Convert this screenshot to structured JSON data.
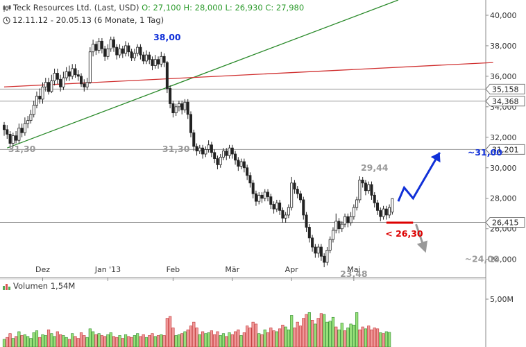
{
  "header": {
    "title": "Teck Resources Ltd. (Last, USD)",
    "ohlc": "O: 27,100  H: 28,000  L: 26,930  C: 27,980",
    "range": "12.11.12 - 20.05.13 (6 Monate, 1 Tag)"
  },
  "volume_header": {
    "label": "Volumen",
    "value": "1,54M"
  },
  "colors": {
    "up": "#22aa22",
    "down": "#d62020",
    "vol_up": "#99e07a",
    "vol_down": "#f0999a",
    "trend_green": "#2a8a2a",
    "trend_red": "#d03030",
    "forecast_up": "#1030d8",
    "forecast_down": "#999999",
    "support": "#dd0000"
  },
  "chart_data": {
    "type": "candlestick",
    "title": "Teck Resources Ltd. (Last, USD)",
    "period": "12.11.12 - 20.05.13",
    "y_axis": {
      "range": [
        22.8,
        41.0
      ],
      "ticks": [
        "24,000",
        "26,000",
        "28,000",
        "30,000",
        "32,000",
        "34,000",
        "36,000",
        "38,000",
        "40,000"
      ],
      "tick_values": [
        24,
        26,
        28,
        30,
        32,
        34,
        36,
        38,
        40
      ]
    },
    "x_axis": {
      "labels": [
        "Dez",
        "Jan '13",
        "Feb",
        "Mär",
        "Apr",
        "Mai"
      ],
      "label_index": [
        13,
        35,
        57,
        77,
        97,
        118
      ]
    },
    "horizontal_levels": [
      {
        "value": 35.158,
        "label": "35,158"
      },
      {
        "value": 34.368,
        "label": "34,368"
      },
      {
        "value": 31.201,
        "label": "31,201"
      },
      {
        "value": 26.415,
        "label": "26,415"
      }
    ],
    "annotations": [
      {
        "text": "38,00",
        "x_index": 55,
        "value": 38.0,
        "color": "#1030d8"
      },
      {
        "text": "31,30",
        "x_index": 6,
        "value": 31.3,
        "color": "#999999"
      },
      {
        "text": "31,30",
        "x_index": 58,
        "value": 31.3,
        "color": "#999999"
      },
      {
        "text": "29,44",
        "x_index": 125,
        "value": 29.44,
        "color": "#999999"
      },
      {
        "text": "23,48",
        "x_index": 118,
        "value": 23.48,
        "color": "#999999"
      },
      {
        "text": "< 26,30",
        "x_index": 135,
        "value": 26.3,
        "color": "#dd0000"
      },
      {
        "text": "~31,00",
        "x_index": 155,
        "value": 31.0,
        "color": "#1030d8"
      },
      {
        "text": "~24,00",
        "x_index": 154,
        "value": 24.0,
        "color": "#999999"
      }
    ],
    "trendlines": [
      {
        "name": "green",
        "from": [
          1,
          31.3
        ],
        "to": [
          133,
          41.0
        ]
      },
      {
        "name": "red",
        "from": [
          0,
          35.3
        ],
        "to": [
          165,
          36.9
        ]
      }
    ],
    "forecast_up": [
      [
        133,
        27.8
      ],
      [
        135,
        28.7
      ],
      [
        138,
        28.0
      ],
      [
        147,
        31.0
      ]
    ],
    "forecast_down": [
      [
        139,
        26.3
      ],
      [
        142,
        24.6
      ]
    ],
    "support_mark": {
      "x_from": 129,
      "x_to": 138,
      "value": 26.4
    },
    "candles": [
      [
        32.8,
        32.5,
        33.0,
        32.1
      ],
      [
        32.5,
        32.2,
        32.8,
        31.9
      ],
      [
        32.2,
        31.6,
        32.4,
        31.3
      ],
      [
        31.6,
        32.1,
        32.3,
        31.4
      ],
      [
        32.1,
        31.8,
        32.4,
        31.6
      ],
      [
        31.8,
        32.6,
        32.9,
        31.6
      ],
      [
        32.6,
        32.3,
        32.9,
        32.0
      ],
      [
        32.3,
        32.9,
        33.3,
        32.1
      ],
      [
        32.9,
        33.1,
        33.4,
        32.6
      ],
      [
        33.1,
        33.5,
        33.8,
        32.9
      ],
      [
        33.5,
        34.1,
        34.4,
        33.3
      ],
      [
        34.1,
        34.7,
        35.0,
        33.9
      ],
      [
        34.7,
        34.5,
        35.2,
        34.2
      ],
      [
        34.5,
        35.3,
        35.6,
        34.2
      ],
      [
        35.3,
        35.6,
        35.9,
        35.0
      ],
      [
        35.6,
        35.0,
        35.9,
        34.8
      ],
      [
        35.0,
        35.7,
        36.1,
        34.9
      ],
      [
        35.7,
        36.2,
        36.5,
        35.4
      ],
      [
        36.2,
        35.8,
        36.5,
        35.5
      ],
      [
        35.8,
        35.3,
        36.1,
        35.0
      ],
      [
        35.3,
        35.9,
        36.3,
        35.1
      ],
      [
        35.9,
        36.3,
        36.6,
        35.7
      ],
      [
        36.3,
        36.0,
        36.7,
        35.7
      ],
      [
        36.0,
        36.5,
        36.8,
        35.8
      ],
      [
        36.5,
        36.1,
        36.8,
        35.9
      ],
      [
        36.1,
        36.0,
        36.4,
        35.7
      ],
      [
        36.0,
        35.5,
        36.2,
        35.3
      ],
      [
        35.5,
        35.3,
        35.8,
        35.0
      ],
      [
        35.3,
        35.6,
        35.9,
        35.1
      ],
      [
        35.6,
        37.6,
        37.9,
        35.5
      ],
      [
        37.6,
        38.1,
        38.4,
        37.3
      ],
      [
        38.1,
        37.7,
        38.3,
        37.4
      ],
      [
        37.7,
        38.3,
        38.5,
        37.5
      ],
      [
        38.3,
        37.8,
        38.5,
        37.5
      ],
      [
        37.8,
        37.3,
        38.0,
        37.0
      ],
      [
        37.3,
        37.8,
        38.1,
        37.1
      ],
      [
        37.8,
        38.4,
        38.6,
        37.6
      ],
      [
        38.4,
        37.9,
        38.6,
        37.6
      ],
      [
        37.9,
        37.4,
        38.1,
        37.1
      ],
      [
        37.4,
        37.8,
        38.1,
        37.2
      ],
      [
        37.8,
        37.5,
        38.0,
        37.2
      ],
      [
        37.5,
        38.0,
        38.3,
        37.3
      ],
      [
        38.0,
        37.6,
        38.2,
        37.3
      ],
      [
        37.6,
        37.2,
        37.8,
        37.0
      ],
      [
        37.2,
        37.5,
        37.8,
        37.0
      ],
      [
        37.5,
        37.9,
        38.1,
        37.3
      ],
      [
        37.9,
        37.4,
        38.1,
        37.1
      ],
      [
        37.4,
        37.0,
        37.6,
        36.8
      ],
      [
        37.0,
        37.4,
        37.7,
        36.8
      ],
      [
        37.4,
        37.1,
        37.6,
        36.8
      ],
      [
        37.1,
        36.7,
        37.3,
        36.4
      ],
      [
        36.7,
        37.1,
        37.4,
        36.5
      ],
      [
        37.1,
        36.8,
        37.3,
        36.5
      ],
      [
        36.8,
        37.3,
        37.6,
        36.6
      ],
      [
        37.3,
        36.9,
        37.5,
        36.6
      ],
      [
        36.9,
        35.2,
        37.0,
        34.9
      ],
      [
        35.2,
        34.2,
        35.4,
        33.9
      ],
      [
        34.2,
        33.6,
        34.4,
        33.3
      ],
      [
        33.6,
        34.0,
        34.2,
        33.4
      ],
      [
        34.0,
        34.2,
        34.4,
        33.7
      ],
      [
        34.2,
        33.8,
        34.4,
        33.5
      ],
      [
        33.8,
        34.3,
        34.5,
        33.6
      ],
      [
        34.3,
        33.5,
        34.5,
        33.2
      ],
      [
        33.5,
        32.3,
        33.7,
        32.0
      ],
      [
        32.3,
        31.4,
        32.5,
        31.1
      ],
      [
        31.4,
        31.1,
        31.6,
        30.8
      ],
      [
        31.1,
        31.3,
        31.5,
        30.9
      ],
      [
        31.3,
        30.9,
        31.5,
        30.6
      ],
      [
        30.9,
        31.2,
        31.4,
        30.7
      ],
      [
        31.2,
        31.5,
        31.8,
        31.0
      ],
      [
        31.5,
        31.0,
        31.7,
        30.7
      ],
      [
        31.0,
        30.6,
        31.2,
        30.3
      ],
      [
        30.6,
        30.2,
        30.8,
        29.9
      ],
      [
        30.2,
        30.7,
        30.9,
        30.0
      ],
      [
        30.7,
        31.1,
        31.3,
        30.5
      ],
      [
        31.1,
        30.8,
        31.3,
        30.5
      ],
      [
        30.8,
        31.3,
        31.5,
        30.6
      ],
      [
        31.3,
        30.9,
        31.5,
        30.6
      ],
      [
        30.9,
        30.5,
        31.1,
        30.2
      ],
      [
        30.5,
        30.1,
        30.7,
        29.8
      ],
      [
        30.1,
        30.4,
        30.6,
        29.9
      ],
      [
        30.4,
        30.0,
        30.6,
        29.7
      ],
      [
        30.0,
        29.5,
        30.2,
        29.2
      ],
      [
        29.5,
        29.0,
        29.7,
        28.7
      ],
      [
        29.0,
        28.3,
        29.2,
        28.0
      ],
      [
        28.3,
        27.8,
        28.5,
        27.5
      ],
      [
        27.8,
        28.2,
        28.4,
        27.6
      ],
      [
        28.2,
        28.0,
        28.4,
        27.7
      ],
      [
        28.0,
        28.4,
        28.6,
        27.8
      ],
      [
        28.4,
        28.1,
        28.6,
        27.8
      ],
      [
        28.1,
        27.6,
        28.3,
        27.3
      ],
      [
        27.6,
        27.3,
        27.8,
        27.0
      ],
      [
        27.3,
        27.7,
        27.9,
        27.1
      ],
      [
        27.7,
        27.2,
        27.9,
        26.9
      ],
      [
        27.2,
        26.7,
        27.4,
        26.4
      ],
      [
        26.7,
        26.9,
        27.1,
        26.4
      ],
      [
        26.9,
        27.4,
        27.6,
        26.7
      ],
      [
        27.4,
        29.0,
        29.4,
        27.2
      ],
      [
        29.0,
        28.6,
        29.2,
        28.3
      ],
      [
        28.6,
        28.3,
        28.8,
        28.0
      ],
      [
        28.3,
        27.9,
        28.5,
        27.7
      ],
      [
        27.9,
        26.9,
        28.1,
        26.6
      ],
      [
        26.9,
        26.1,
        27.1,
        25.8
      ],
      [
        26.1,
        25.4,
        26.3,
        25.1
      ],
      [
        25.4,
        24.8,
        25.6,
        24.5
      ],
      [
        24.8,
        24.4,
        25.0,
        24.1
      ],
      [
        24.4,
        24.8,
        25.0,
        24.1
      ],
      [
        24.8,
        24.2,
        25.0,
        23.9
      ],
      [
        24.2,
        23.8,
        24.4,
        23.48
      ],
      [
        23.8,
        24.6,
        24.8,
        23.6
      ],
      [
        24.6,
        25.3,
        25.5,
        24.4
      ],
      [
        25.3,
        25.9,
        26.1,
        25.1
      ],
      [
        25.9,
        26.5,
        27.0,
        25.7
      ],
      [
        26.5,
        26.0,
        26.7,
        25.7
      ],
      [
        26.0,
        26.3,
        26.5,
        25.8
      ],
      [
        26.3,
        26.8,
        27.0,
        26.1
      ],
      [
        26.8,
        26.4,
        27.0,
        26.1
      ],
      [
        26.4,
        26.8,
        27.1,
        26.2
      ],
      [
        26.8,
        27.4,
        27.6,
        26.6
      ],
      [
        27.4,
        27.9,
        28.1,
        27.2
      ],
      [
        27.9,
        29.2,
        29.44,
        27.7
      ],
      [
        29.2,
        29.0,
        29.4,
        28.7
      ],
      [
        29.0,
        28.5,
        29.2,
        28.2
      ],
      [
        28.5,
        28.9,
        29.1,
        28.3
      ],
      [
        28.9,
        28.2,
        29.1,
        27.9
      ],
      [
        28.2,
        27.7,
        28.4,
        27.4
      ],
      [
        27.7,
        27.2,
        27.9,
        26.9
      ],
      [
        27.2,
        26.8,
        27.4,
        26.5
      ],
      [
        26.8,
        27.3,
        27.5,
        26.6
      ],
      [
        27.3,
        26.9,
        27.5,
        26.6
      ],
      [
        26.9,
        27.4,
        27.6,
        26.7
      ],
      [
        27.1,
        27.98,
        28.0,
        26.93
      ]
    ],
    "volumes": [
      [
        0.8,
        1
      ],
      [
        1.0,
        0
      ],
      [
        1.4,
        0
      ],
      [
        0.9,
        1
      ],
      [
        1.1,
        0
      ],
      [
        1.6,
        1
      ],
      [
        1.2,
        0
      ],
      [
        1.3,
        1
      ],
      [
        1.1,
        1
      ],
      [
        0.9,
        1
      ],
      [
        1.5,
        1
      ],
      [
        1.7,
        1
      ],
      [
        1.0,
        0
      ],
      [
        1.3,
        1
      ],
      [
        1.2,
        1
      ],
      [
        1.8,
        0
      ],
      [
        1.4,
        1
      ],
      [
        1.1,
        1
      ],
      [
        1.6,
        0
      ],
      [
        1.3,
        0
      ],
      [
        1.2,
        1
      ],
      [
        1.0,
        1
      ],
      [
        0.8,
        0
      ],
      [
        1.4,
        1
      ],
      [
        1.1,
        0
      ],
      [
        0.9,
        0
      ],
      [
        1.5,
        0
      ],
      [
        1.2,
        0
      ],
      [
        1.0,
        1
      ],
      [
        1.9,
        1
      ],
      [
        1.6,
        1
      ],
      [
        1.3,
        0
      ],
      [
        1.4,
        1
      ],
      [
        1.2,
        0
      ],
      [
        1.1,
        0
      ],
      [
        1.3,
        1
      ],
      [
        1.5,
        1
      ],
      [
        1.1,
        0
      ],
      [
        1.0,
        0
      ],
      [
        1.2,
        1
      ],
      [
        0.9,
        0
      ],
      [
        1.3,
        1
      ],
      [
        1.1,
        0
      ],
      [
        1.0,
        0
      ],
      [
        1.2,
        1
      ],
      [
        1.4,
        1
      ],
      [
        1.1,
        0
      ],
      [
        1.3,
        0
      ],
      [
        1.0,
        1
      ],
      [
        1.2,
        0
      ],
      [
        1.4,
        0
      ],
      [
        1.1,
        1
      ],
      [
        1.2,
        0
      ],
      [
        1.3,
        1
      ],
      [
        1.2,
        0
      ],
      [
        3.0,
        0
      ],
      [
        3.2,
        0
      ],
      [
        2.0,
        0
      ],
      [
        1.2,
        1
      ],
      [
        1.3,
        1
      ],
      [
        1.4,
        0
      ],
      [
        1.6,
        1
      ],
      [
        1.8,
        0
      ],
      [
        2.2,
        0
      ],
      [
        2.6,
        0
      ],
      [
        2.0,
        0
      ],
      [
        1.3,
        1
      ],
      [
        1.6,
        0
      ],
      [
        1.4,
        1
      ],
      [
        1.5,
        1
      ],
      [
        1.7,
        0
      ],
      [
        1.3,
        0
      ],
      [
        1.6,
        0
      ],
      [
        1.2,
        1
      ],
      [
        1.4,
        1
      ],
      [
        1.1,
        0
      ],
      [
        1.5,
        1
      ],
      [
        1.3,
        0
      ],
      [
        1.6,
        0
      ],
      [
        1.8,
        0
      ],
      [
        1.2,
        1
      ],
      [
        1.5,
        0
      ],
      [
        2.2,
        0
      ],
      [
        2.0,
        0
      ],
      [
        2.6,
        0
      ],
      [
        2.4,
        0
      ],
      [
        1.4,
        1
      ],
      [
        1.3,
        0
      ],
      [
        1.8,
        1
      ],
      [
        1.5,
        0
      ],
      [
        2.0,
        0
      ],
      [
        1.7,
        0
      ],
      [
        1.6,
        1
      ],
      [
        1.9,
        0
      ],
      [
        2.3,
        0
      ],
      [
        2.1,
        1
      ],
      [
        1.8,
        1
      ],
      [
        3.3,
        1
      ],
      [
        2.0,
        0
      ],
      [
        2.6,
        0
      ],
      [
        2.2,
        0
      ],
      [
        3.0,
        0
      ],
      [
        3.4,
        0
      ],
      [
        3.6,
        1
      ],
      [
        2.8,
        0
      ],
      [
        2.4,
        1
      ],
      [
        3.0,
        0
      ],
      [
        3.5,
        0
      ],
      [
        3.4,
        1
      ],
      [
        2.6,
        1
      ],
      [
        2.7,
        1
      ],
      [
        3.1,
        1
      ],
      [
        2.1,
        0
      ],
      [
        1.8,
        1
      ],
      [
        2.5,
        1
      ],
      [
        1.7,
        0
      ],
      [
        2.0,
        1
      ],
      [
        2.4,
        1
      ],
      [
        2.3,
        1
      ],
      [
        3.6,
        1
      ],
      [
        1.8,
        0
      ],
      [
        2.1,
        0
      ],
      [
        1.9,
        1
      ],
      [
        2.2,
        0
      ],
      [
        1.8,
        0
      ],
      [
        2.0,
        0
      ],
      [
        1.9,
        0
      ],
      [
        1.5,
        1
      ],
      [
        1.4,
        0
      ],
      [
        1.6,
        1
      ],
      [
        1.54,
        1
      ]
    ],
    "volume_axis": {
      "ticks": [
        "5,00M"
      ],
      "tick_values": [
        5.0
      ],
      "max": 5.8
    }
  }
}
